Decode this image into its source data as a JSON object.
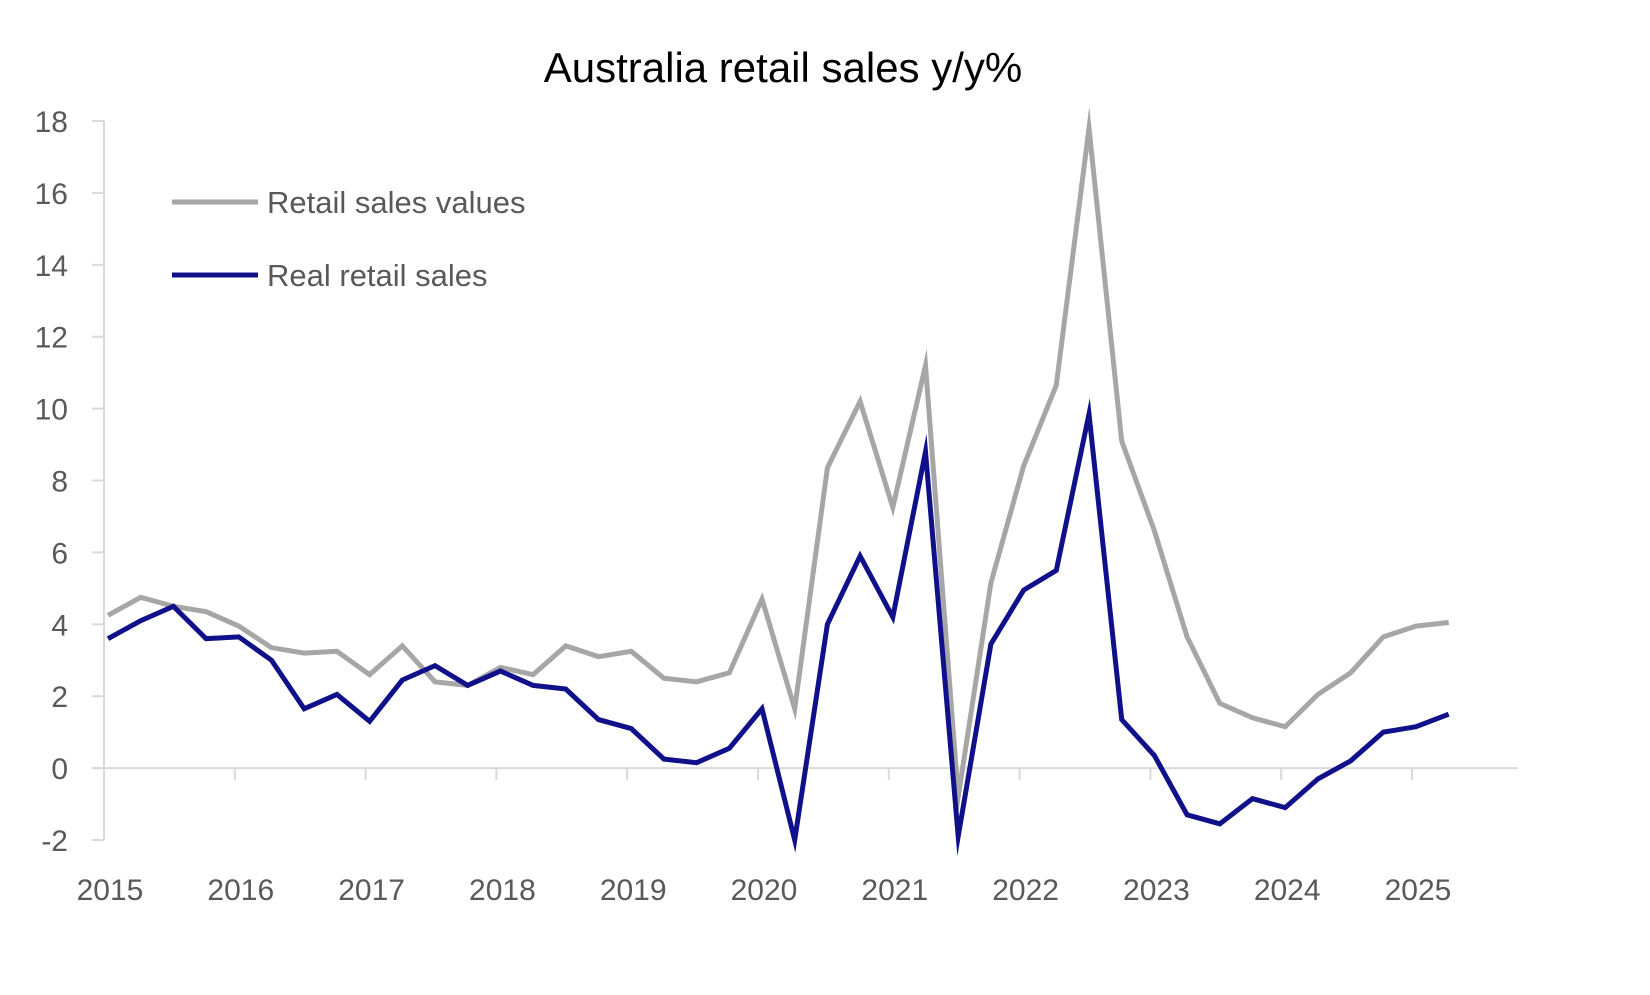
{
  "chart_data": {
    "type": "line",
    "title": "Australia retail sales y/y%",
    "xlabel": "",
    "ylabel": "",
    "ylim": [
      -2,
      18
    ],
    "yticks": [
      "-2",
      "0",
      "2",
      "4",
      "6",
      "8",
      "10",
      "12",
      "14",
      "16",
      "18"
    ],
    "xticks": [
      "2015",
      "2016",
      "2017",
      "2018",
      "2019",
      "2020",
      "2021",
      "2022",
      "2023",
      "2024",
      "2025"
    ],
    "grid": false,
    "legend": "top-left",
    "x": [
      "2015-Q1",
      "2015-Q2",
      "2015-Q3",
      "2015-Q4",
      "2016-Q1",
      "2016-Q2",
      "2016-Q3",
      "2016-Q4",
      "2017-Q1",
      "2017-Q2",
      "2017-Q3",
      "2017-Q4",
      "2018-Q1",
      "2018-Q2",
      "2018-Q3",
      "2018-Q4",
      "2019-Q1",
      "2019-Q2",
      "2019-Q3",
      "2019-Q4",
      "2020-Q1",
      "2020-Q2",
      "2020-Q3",
      "2020-Q4",
      "2021-Q1",
      "2021-Q2",
      "2021-Q3",
      "2021-Q4",
      "2022-Q1",
      "2022-Q2",
      "2022-Q3",
      "2022-Q4",
      "2023-Q1",
      "2023-Q2",
      "2023-Q3",
      "2023-Q4",
      "2024-Q1",
      "2024-Q2",
      "2024-Q3",
      "2024-Q4",
      "2025-Q1",
      "2025-Q2"
    ],
    "series": [
      {
        "name": "Retail sales values",
        "color": "#A6A6A6",
        "values": [
          4.25,
          4.75,
          4.5,
          4.35,
          3.95,
          3.35,
          3.2,
          3.25,
          2.6,
          3.4,
          2.4,
          2.3,
          2.8,
          2.6,
          3.4,
          3.1,
          3.25,
          2.5,
          2.4,
          2.65,
          4.7,
          1.65,
          8.35,
          10.2,
          7.25,
          11.2,
          -0.8,
          5.15,
          8.4,
          10.65,
          17.8,
          9.1,
          6.6,
          3.65,
          1.8,
          1.4,
          1.15,
          2.05,
          2.65,
          3.65,
          3.95,
          4.05
        ]
      },
      {
        "name": "Real retail sales",
        "color": "#10108A",
        "values": [
          3.6,
          4.1,
          4.5,
          3.6,
          3.65,
          3.0,
          1.65,
          2.05,
          1.3,
          2.45,
          2.85,
          2.3,
          2.7,
          2.3,
          2.2,
          1.35,
          1.1,
          0.25,
          0.15,
          0.55,
          1.65,
          -2.0,
          4.0,
          5.9,
          4.2,
          8.8,
          -1.9,
          3.45,
          4.95,
          5.5,
          9.85,
          1.35,
          0.35,
          -1.3,
          -1.55,
          -0.85,
          -1.1,
          -0.3,
          0.2,
          1.0,
          1.15,
          1.5
        ]
      }
    ]
  }
}
